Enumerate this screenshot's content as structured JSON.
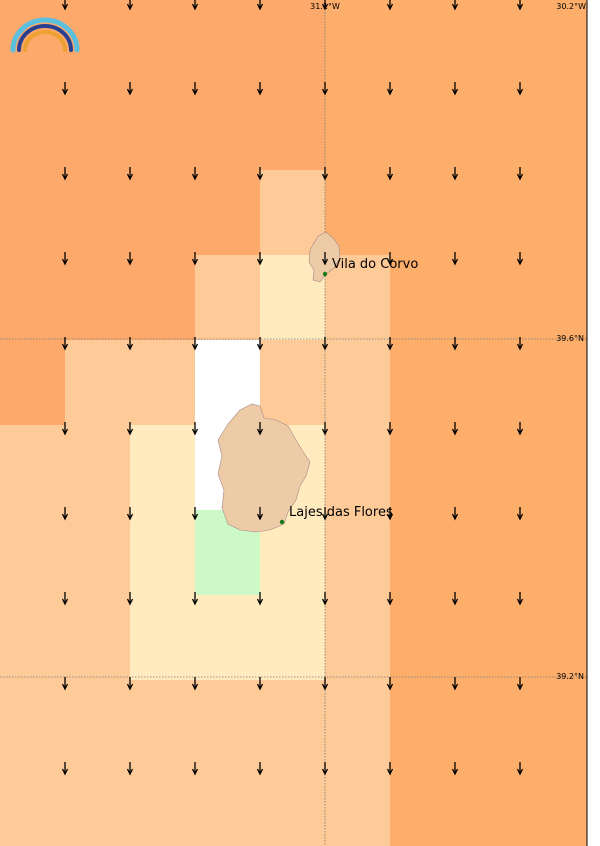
{
  "map": {
    "longitude_labels": [
      "31.1°W",
      "30.2°W"
    ],
    "latitude_labels": [
      "39.6°N",
      "39.2°N"
    ],
    "places": [
      "Vila do Corvo",
      "Lajes das Flores"
    ]
  }
}
